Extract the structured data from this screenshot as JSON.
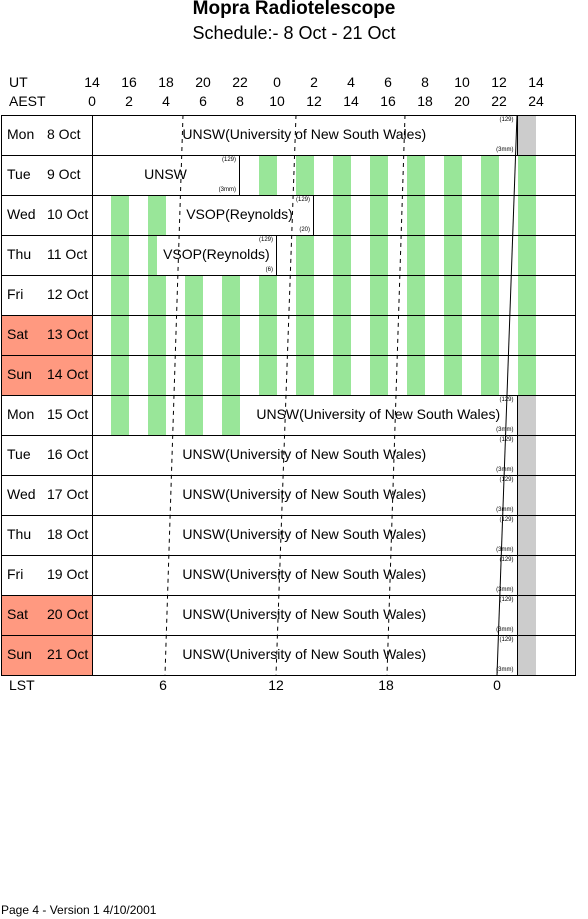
{
  "title": "Mopra Radiotelescope",
  "subtitle": "Schedule:- 8  Oct - 21 Oct",
  "ut_label": "UT",
  "aest_label": "AEST",
  "lst_label": "LST",
  "ut_ticks": [
    "14",
    "16",
    "18",
    "20",
    "22",
    "0",
    "2",
    "4",
    "6",
    "8",
    "10",
    "12",
    "14"
  ],
  "aest_ticks": [
    "0",
    "2",
    "4",
    "6",
    "8",
    "10",
    "12",
    "14",
    "16",
    "18",
    "20",
    "22",
    "24"
  ],
  "lst_ticks": [
    "6",
    "12",
    "18",
    "0"
  ],
  "days": [
    {
      "name": "Mon",
      "date": "8  Oct",
      "weekend": false
    },
    {
      "name": "Tue",
      "date": "9  Oct",
      "weekend": false
    },
    {
      "name": "Wed",
      "date": "10 Oct",
      "weekend": false
    },
    {
      "name": "Thu",
      "date": "11 Oct",
      "weekend": false
    },
    {
      "name": "Fri",
      "date": "12 Oct",
      "weekend": false
    },
    {
      "name": "Sat",
      "date": "13 Oct",
      "weekend": true
    },
    {
      "name": "Sun",
      "date": "14 Oct",
      "weekend": true
    },
    {
      "name": "Mon",
      "date": "15 Oct",
      "weekend": false
    },
    {
      "name": "Tue",
      "date": "16 Oct",
      "weekend": false
    },
    {
      "name": "Wed",
      "date": "17 Oct",
      "weekend": false
    },
    {
      "name": "Thu",
      "date": "18 Oct",
      "weekend": false
    },
    {
      "name": "Fri",
      "date": "19 Oct",
      "weekend": false
    },
    {
      "name": "Sat",
      "date": "20 Oct",
      "weekend": true
    },
    {
      "name": "Sun",
      "date": "21 Oct",
      "weekend": true
    }
  ],
  "colors": {
    "greyStripe": "#cccccc",
    "greenStripe": "#99e699",
    "weekend": "#ff9980"
  },
  "blocks": [
    {
      "row": 0,
      "from_aest": 0,
      "to_aest": 23,
      "text": "UNSW(University of New South Wales)",
      "top": "(129)",
      "bottom": "(3mm)"
    },
    {
      "row": 1,
      "from_aest": 0,
      "to_aest": 8,
      "text": "UNSW",
      "top": "(129)",
      "bottom": "(3mm)"
    },
    {
      "row": 2,
      "from_aest": 4,
      "to_aest": 12,
      "text": "VSOP(Reynolds)",
      "top": "(129)",
      "bottom": "(20)"
    },
    {
      "row": 3,
      "from_aest": 3.5,
      "to_aest": 10,
      "text": "VSOP(Reynolds)",
      "top": "(129)",
      "bottom": "(6)"
    },
    {
      "row": 7,
      "from_aest": 8,
      "to_aest": 23,
      "text": "UNSW(University of New South Wales)",
      "top": "(129)",
      "bottom": "(3mm)"
    },
    {
      "row": 8,
      "from_aest": 0,
      "to_aest": 23,
      "text": "UNSW(University of New South Wales)",
      "top": "(129)",
      "bottom": "(3mm)"
    },
    {
      "row": 9,
      "from_aest": 0,
      "to_aest": 23,
      "text": "UNSW(University of New South Wales)",
      "top": "(129)",
      "bottom": "(3mm)"
    },
    {
      "row": 10,
      "from_aest": 0,
      "to_aest": 23,
      "text": "UNSW(University of New South Wales)",
      "top": "(129)",
      "bottom": "(3mm)"
    },
    {
      "row": 11,
      "from_aest": 0,
      "to_aest": 23,
      "text": "UNSW(University of New South Wales)",
      "top": "(129)",
      "bottom": "(3mm)"
    },
    {
      "row": 12,
      "from_aest": 0,
      "to_aest": 23,
      "text": "UNSW(University of New South Wales)",
      "top": "(129)",
      "bottom": "(3mm)"
    },
    {
      "row": 13,
      "from_aest": 0,
      "to_aest": 23,
      "text": "UNSW(University of New South Wales)",
      "top": "(129)",
      "bottom": "(3mm)"
    }
  ],
  "footer": "Page 4 - Version 1  4/10/2001"
}
